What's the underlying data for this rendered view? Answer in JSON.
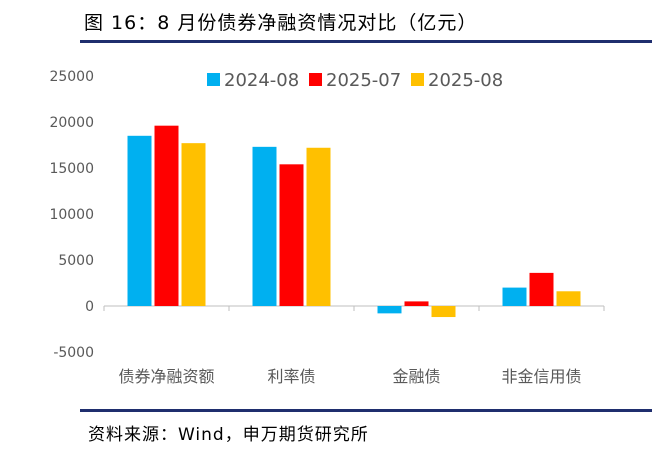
{
  "figure": {
    "title": "图 16：8 月份债券净融资情况对比（亿元）",
    "source": "资料来源：Wind，申万期货研究所"
  },
  "colors": {
    "rule": "#1f2e6e",
    "series": [
      "#00b0f0",
      "#ff0000",
      "#ffc000"
    ],
    "axis": "#bfbfbf",
    "tick_text": "#595959"
  },
  "chart_data": {
    "type": "bar",
    "categories": [
      "债券净融资额",
      "利率债",
      "金融债",
      "非金信用债"
    ],
    "series": [
      {
        "name": "2024-08",
        "values": [
          18500,
          17300,
          -800,
          2000
        ]
      },
      {
        "name": "2025-07",
        "values": [
          19600,
          15400,
          500,
          3600
        ]
      },
      {
        "name": "2025-08",
        "values": [
          17700,
          17200,
          -1200,
          1600
        ]
      }
    ],
    "ylim": [
      -5000,
      25000
    ],
    "yticks": [
      25000,
      20000,
      15000,
      10000,
      5000,
      0,
      -5000
    ],
    "ytick_labels": [
      "25000",
      "20000",
      "15000",
      "10000",
      "5000",
      "0",
      "-5000"
    ],
    "legend": "top",
    "grid": false
  }
}
